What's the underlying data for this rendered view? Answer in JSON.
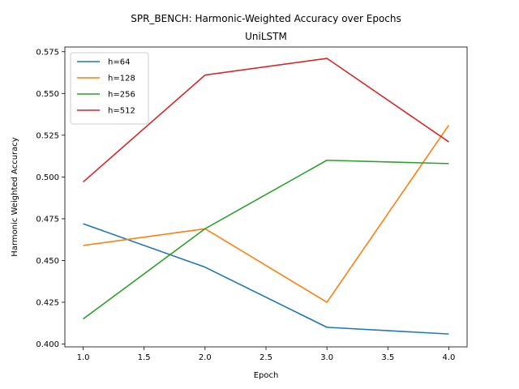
{
  "chart_data": {
    "type": "line",
    "title": "SPR_BENCH: Harmonic-Weighted Accuracy over Epochs",
    "subtitle": "UniLSTM",
    "xlabel": "Epoch",
    "ylabel": "Harmonic Weighted Accuracy",
    "x": [
      1.0,
      2.0,
      3.0,
      4.0
    ],
    "xlim": [
      0.85,
      4.15
    ],
    "ylim": [
      0.3983,
      0.5778
    ],
    "xticks": [
      "1.0",
      "1.5",
      "2.0",
      "2.5",
      "3.0",
      "3.5",
      "4.0"
    ],
    "yticks": [
      "0.400",
      "0.425",
      "0.450",
      "0.475",
      "0.500",
      "0.525",
      "0.550",
      "0.575"
    ],
    "grid": false,
    "legend_position": "upper-left",
    "series": [
      {
        "name": "h=64",
        "color": "#1f77b4",
        "values": [
          0.472,
          0.446,
          0.41,
          0.406
        ]
      },
      {
        "name": "h=128",
        "color": "#ff7f0e",
        "values": [
          0.459,
          0.469,
          0.425,
          0.531
        ]
      },
      {
        "name": "h=256",
        "color": "#2ca02c",
        "values": [
          0.415,
          0.469,
          0.51,
          0.508
        ]
      },
      {
        "name": "h=512",
        "color": "#d62728",
        "values": [
          0.497,
          0.561,
          0.571,
          0.521
        ]
      }
    ]
  }
}
